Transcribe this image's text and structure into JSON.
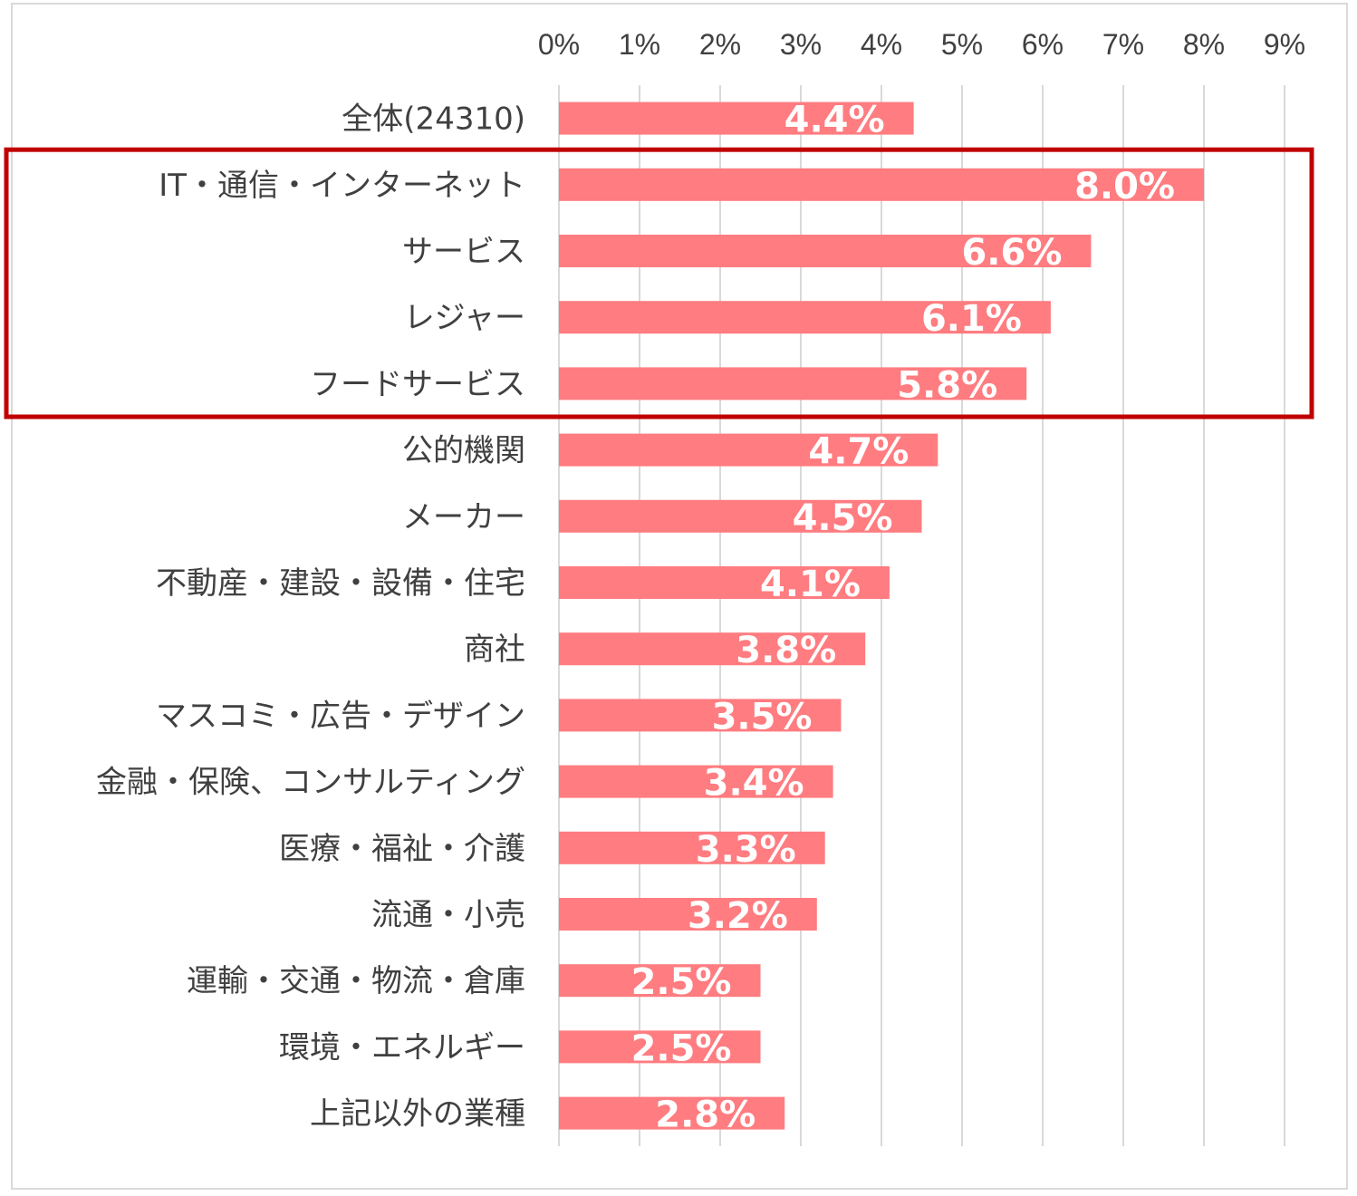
{
  "chart_data": {
    "type": "bar",
    "orientation": "horizontal",
    "title": "",
    "xlabel": "",
    "ylabel": "",
    "xlim": [
      0,
      9
    ],
    "ticks": [
      "0%",
      "1%",
      "2%",
      "3%",
      "4%",
      "5%",
      "6%",
      "7%",
      "8%",
      "9%"
    ],
    "grid": true,
    "bar_color": "#ff7c80",
    "highlight_color": "#c00000",
    "highlight_categories": [
      "IT・通信・インターネット",
      "サービス",
      "レジャー",
      "フードサービス"
    ],
    "categories": [
      "全体(24310)",
      "IT・通信・インターネット",
      "サービス",
      "レジャー",
      "フードサービス",
      "公的機関",
      "メーカー",
      "不動産・建設・設備・住宅",
      "商社",
      "マスコミ・広告・デザイン",
      "金融・保険、コンサルティング",
      "医療・福祉・介護",
      "流通・小売",
      "運輸・交通・物流・倉庫",
      "環境・エネルギー",
      "上記以外の業種"
    ],
    "values": [
      4.4,
      8.0,
      6.6,
      6.1,
      5.8,
      4.7,
      4.5,
      4.1,
      3.8,
      3.5,
      3.4,
      3.3,
      3.2,
      2.5,
      2.5,
      2.8
    ],
    "data_labels": [
      "4.4%",
      "8.0%",
      "6.6%",
      "6.1%",
      "5.8%",
      "4.7%",
      "4.5%",
      "4.1%",
      "3.8%",
      "3.5%",
      "3.4%",
      "3.3%",
      "3.2%",
      "2.5%",
      "2.5%",
      "2.8%"
    ]
  }
}
